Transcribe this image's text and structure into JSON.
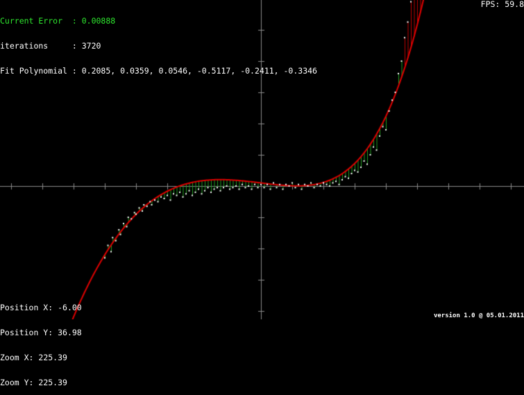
{
  "stats": {
    "error_label": "Current Error",
    "error_value": "0.00888",
    "iterations_label": "iterations",
    "iterations_value": "3720",
    "poly_label": "Fit Polynomial",
    "poly_values": "0.2085, 0.0359, 0.0546, -0.5117, -0.2411, -0.3346"
  },
  "fps": {
    "label": "FPS:",
    "value": "59.8"
  },
  "view": {
    "pos_x_label": "Position X:",
    "pos_x_value": "-6.00",
    "pos_y_label": "Position Y:",
    "pos_y_value": "36.98",
    "zoom_x_label": "Zoom X:",
    "zoom_x_value": "225.39",
    "zoom_y_label": "Zoom Y:",
    "zoom_y_value": "225.39"
  },
  "version": "version 1.0 @ 05.01.2011",
  "colors": {
    "background": "#000000",
    "axis": "#8c8c8c",
    "curve": "#e00000",
    "points": "#ffffff",
    "residual_near": "#22a022",
    "residual_far": "#c00000",
    "error_text": "#2ee62e"
  },
  "chart_data": {
    "type": "scatter",
    "fit_curve": "polynomial",
    "points": [
      [
        -1.0,
        -0.46
      ],
      [
        -0.98,
        -0.38
      ],
      [
        -0.96,
        -0.42
      ],
      [
        -0.95,
        -0.33
      ],
      [
        -0.93,
        -0.35
      ],
      [
        -0.91,
        -0.28
      ],
      [
        -0.9,
        -0.31
      ],
      [
        -0.88,
        -0.24
      ],
      [
        -0.86,
        -0.26
      ],
      [
        -0.85,
        -0.2
      ],
      [
        -0.83,
        -0.21
      ],
      [
        -0.81,
        -0.17
      ],
      [
        -0.8,
        -0.18
      ],
      [
        -0.78,
        -0.14
      ],
      [
        -0.76,
        -0.16
      ],
      [
        -0.75,
        -0.12
      ],
      [
        -0.73,
        -0.13
      ],
      [
        -0.71,
        -0.1
      ],
      [
        -0.7,
        -0.12
      ],
      [
        -0.68,
        -0.09
      ],
      [
        -0.66,
        -0.1
      ],
      [
        -0.64,
        -0.07
      ],
      [
        -0.62,
        -0.08
      ],
      [
        -0.6,
        -0.06
      ],
      [
        -0.58,
        -0.09
      ],
      [
        -0.56,
        -0.05
      ],
      [
        -0.54,
        -0.06
      ],
      [
        -0.52,
        -0.04
      ],
      [
        -0.5,
        -0.07
      ],
      [
        -0.48,
        -0.05
      ],
      [
        -0.46,
        -0.03
      ],
      [
        -0.44,
        -0.06
      ],
      [
        -0.42,
        -0.04
      ],
      [
        -0.4,
        -0.02
      ],
      [
        -0.38,
        -0.05
      ],
      [
        -0.36,
        -0.03
      ],
      [
        -0.34,
        -0.01
      ],
      [
        -0.32,
        -0.04
      ],
      [
        -0.3,
        -0.02
      ],
      [
        -0.28,
        -0.01
      ],
      [
        -0.26,
        -0.03
      ],
      [
        -0.24,
        -0.01
      ],
      [
        -0.22,
        0.0
      ],
      [
        -0.2,
        -0.02
      ],
      [
        -0.18,
        -0.01
      ],
      [
        -0.16,
        0.0
      ],
      [
        -0.14,
        -0.02
      ],
      [
        -0.12,
        0.01
      ],
      [
        -0.1,
        -0.01
      ],
      [
        -0.08,
        0.0
      ],
      [
        -0.06,
        -0.02
      ],
      [
        -0.04,
        0.01
      ],
      [
        -0.02,
        -0.01
      ],
      [
        0.0,
        0.01
      ],
      [
        0.02,
        -0.01
      ],
      [
        0.04,
        0.01
      ],
      [
        0.06,
        -0.02
      ],
      [
        0.08,
        0.02
      ],
      [
        0.1,
        -0.01
      ],
      [
        0.12,
        0.01
      ],
      [
        0.14,
        -0.02
      ],
      [
        0.16,
        0.01
      ],
      [
        0.18,
        0.0
      ],
      [
        0.2,
        0.02
      ],
      [
        0.22,
        -0.01
      ],
      [
        0.24,
        0.01
      ],
      [
        0.26,
        -0.02
      ],
      [
        0.28,
        0.01
      ],
      [
        0.3,
        0.0
      ],
      [
        0.32,
        0.02
      ],
      [
        0.34,
        -0.01
      ],
      [
        0.36,
        0.01
      ],
      [
        0.38,
        0.0
      ],
      [
        0.4,
        0.02
      ],
      [
        0.42,
        0.01
      ],
      [
        0.44,
        0.0
      ],
      [
        0.46,
        0.02
      ],
      [
        0.48,
        0.03
      ],
      [
        0.5,
        0.01
      ],
      [
        0.52,
        0.04
      ],
      [
        0.54,
        0.06
      ],
      [
        0.56,
        0.05
      ],
      [
        0.58,
        0.08
      ],
      [
        0.6,
        0.1
      ],
      [
        0.62,
        0.09
      ],
      [
        0.64,
        0.12
      ],
      [
        0.66,
        0.16
      ],
      [
        0.68,
        0.14
      ],
      [
        0.7,
        0.2
      ],
      [
        0.72,
        0.25
      ],
      [
        0.74,
        0.23
      ],
      [
        0.76,
        0.32
      ],
      [
        0.78,
        0.38
      ],
      [
        0.8,
        0.36
      ],
      [
        0.82,
        0.48
      ],
      [
        0.84,
        0.55
      ],
      [
        0.86,
        0.6
      ],
      [
        0.88,
        0.72
      ],
      [
        0.9,
        0.8
      ],
      [
        0.92,
        0.95
      ],
      [
        0.94,
        1.05
      ],
      [
        0.96,
        1.18
      ],
      [
        0.98,
        1.3
      ],
      [
        1.0,
        1.45
      ],
      [
        1.02,
        1.58
      ],
      [
        1.04,
        1.72
      ]
    ]
  }
}
